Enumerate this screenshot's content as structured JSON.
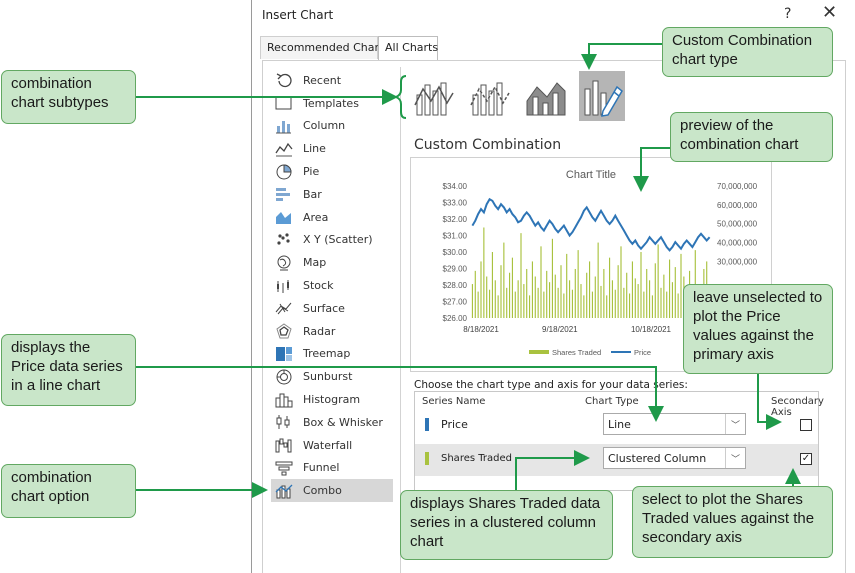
{
  "dialog": {
    "title": "Insert Chart",
    "help_label": "?",
    "close_label": "✕"
  },
  "tabs": [
    {
      "label": "Recommended Charts",
      "active": false
    },
    {
      "label": "All Charts",
      "active": true
    }
  ],
  "chart_types": [
    {
      "label": "Recent",
      "icon": "recent-icon"
    },
    {
      "label": "Templates",
      "icon": "templates-icon"
    },
    {
      "label": "Column",
      "icon": "column-chart-icon"
    },
    {
      "label": "Line",
      "icon": "line-chart-icon"
    },
    {
      "label": "Pie",
      "icon": "pie-chart-icon"
    },
    {
      "label": "Bar",
      "icon": "bar-chart-icon"
    },
    {
      "label": "Area",
      "icon": "area-chart-icon"
    },
    {
      "label": "X Y (Scatter)",
      "icon": "scatter-chart-icon"
    },
    {
      "label": "Map",
      "icon": "map-chart-icon"
    },
    {
      "label": "Stock",
      "icon": "stock-chart-icon"
    },
    {
      "label": "Surface",
      "icon": "surface-chart-icon"
    },
    {
      "label": "Radar",
      "icon": "radar-chart-icon"
    },
    {
      "label": "Treemap",
      "icon": "treemap-chart-icon"
    },
    {
      "label": "Sunburst",
      "icon": "sunburst-chart-icon"
    },
    {
      "label": "Histogram",
      "icon": "histogram-chart-icon"
    },
    {
      "label": "Box & Whisker",
      "icon": "box-whisker-chart-icon"
    },
    {
      "label": "Waterfall",
      "icon": "waterfall-chart-icon"
    },
    {
      "label": "Funnel",
      "icon": "funnel-chart-icon"
    },
    {
      "label": "Combo",
      "icon": "combo-chart-icon",
      "selected": true
    }
  ],
  "subtypes_selected_index": 3,
  "section_title": "Custom Combination",
  "preview": {
    "chart_data": {
      "type": "bar",
      "title": "Chart Title",
      "x_tick_labels": [
        "8/18/2021",
        "9/18/2021",
        "10/18/2021"
      ],
      "y_primary_ticks": [
        "$34.00",
        "$33.00",
        "$32.00",
        "$31.00",
        "$30.00",
        "$29.00",
        "$28.00",
        "$27.00",
        "$26.00"
      ],
      "y_primary_range": [
        26,
        34
      ],
      "y_secondary_ticks": [
        "70,000,000",
        "60,000,000",
        "50,000,000",
        "40,000,000",
        "30,000,000"
      ],
      "y_secondary_range": [
        0,
        70000000
      ],
      "legend_position": "bottom",
      "series": [
        {
          "name": "Shares Traded",
          "kind": "column",
          "axis": "secondary",
          "color": "#a9c23f",
          "values": [
            18,
            25,
            14,
            30,
            48,
            22,
            15,
            35,
            20,
            12,
            28,
            40,
            16,
            24,
            32,
            14,
            20,
            45,
            18,
            26,
            12,
            30,
            22,
            16,
            38,
            14,
            25,
            19,
            42,
            23,
            16,
            28,
            13,
            34,
            20,
            15,
            26,
            36,
            18,
            12,
            24,
            30,
            14,
            22,
            40,
            17,
            26,
            12,
            32,
            20,
            15,
            28,
            38,
            16,
            24,
            13,
            30,
            21,
            18,
            35,
            14,
            26,
            20,
            12,
            29,
            39,
            16,
            23,
            14,
            31,
            19,
            27,
            13,
            34,
            22,
            17,
            25,
            15,
            36,
            18,
            12,
            26,
            30,
            16
          ]
        },
        {
          "name": "Price",
          "kind": "line",
          "axis": "primary",
          "color": "#2e75b6",
          "values": [
            31.6,
            31.9,
            32.3,
            32.6,
            32.4,
            32.9,
            33.2,
            33.1,
            32.8,
            32.6,
            32.9,
            32.7,
            32.4,
            32.6,
            32.3,
            32.1,
            31.8,
            31.9,
            32.2,
            32.4,
            32.2,
            31.9,
            31.6,
            31.8,
            31.5,
            31.3,
            31.6,
            31.9,
            31.7,
            31.4,
            31.2,
            31.4,
            31.6,
            31.3,
            31.0,
            31.2,
            31.5,
            31.8,
            32.1,
            32.5,
            32.7,
            32.4,
            32.1,
            31.9,
            32.2,
            32.5,
            32.2,
            31.9,
            31.7,
            31.9,
            32.2,
            31.9,
            31.6,
            31.3,
            31.0,
            30.7,
            30.5,
            30.7,
            30.4,
            30.2,
            30.4,
            30.6,
            30.9,
            30.7,
            30.5,
            30.7,
            30.9,
            30.6,
            30.3,
            30.1,
            30.3,
            30.6,
            30.4,
            30.2,
            30.5,
            30.7,
            30.5,
            30.3,
            30.6,
            30.9,
            31.1,
            30.9,
            30.7,
            30.9
          ]
        }
      ]
    }
  },
  "series_table": {
    "prompt": "Choose the chart type and axis for your data series:",
    "headers": {
      "name": "Series Name",
      "type": "Chart Type",
      "axis": "Secondary Axis"
    },
    "rows": [
      {
        "name": "Price",
        "chart_type": "Line",
        "secondary_axis": false,
        "color": "#2e75b6"
      },
      {
        "name": "Shares Traded",
        "chart_type": "Clustered Column",
        "secondary_axis": true,
        "color": "#a9c23f"
      }
    ]
  },
  "callouts": {
    "combination_chart_subtypes": "combination chart subtypes",
    "custom_combination_type": "Custom Combination chart type",
    "preview_combination": "preview of the combination chart",
    "price_line": "displays the Price data series in a line chart",
    "leave_unselected": "leave unselected to plot the Price values against the primary axis",
    "combination_option": "combination chart option",
    "shares_column": "displays Shares Traded data series in a clustered column chart",
    "select_secondary": "select to plot the Shares Traded values against the secondary axis"
  }
}
